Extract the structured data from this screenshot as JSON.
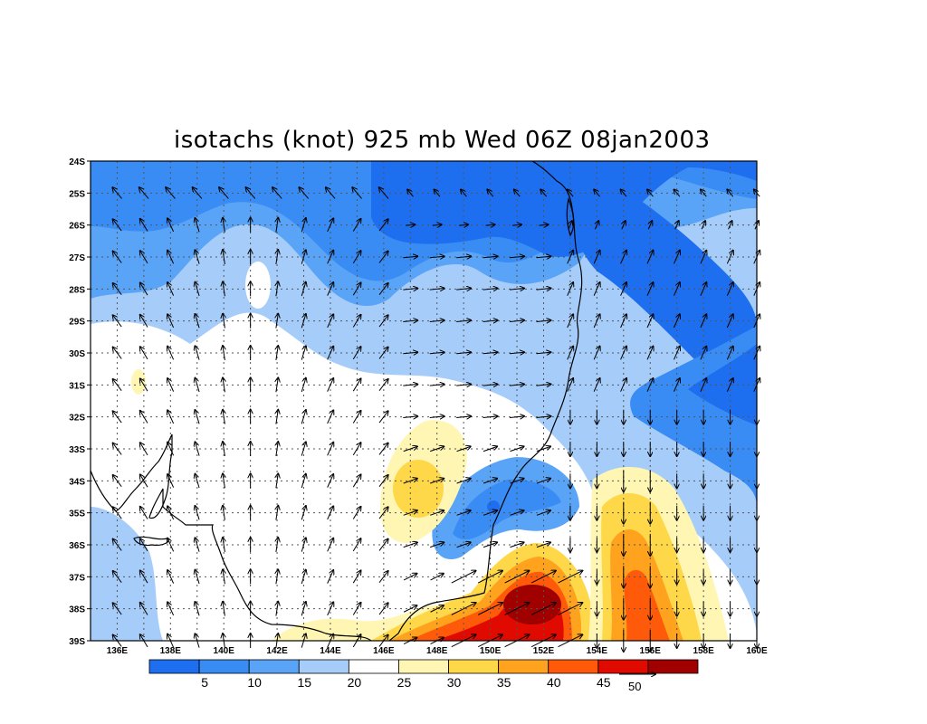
{
  "title": "isotachs (knot) 925 mb Wed 06Z 08jan2003",
  "lat_labels": [
    "24S",
    "25S",
    "26S",
    "27S",
    "28S",
    "29S",
    "30S",
    "31S",
    "32S",
    "33S",
    "34S",
    "35S",
    "36S",
    "37S",
    "38S",
    "39S"
  ],
  "lon_labels": [
    "136E",
    "138E",
    "140E",
    "142E",
    "144E",
    "146E",
    "148E",
    "150E",
    "152E",
    "154E",
    "156E",
    "158E",
    "160E"
  ],
  "colorbar": {
    "ticks": [
      "5",
      "10",
      "15",
      "20",
      "25",
      "30",
      "35",
      "40",
      "45"
    ],
    "colors": [
      "#1e6ef0",
      "#3a8cf5",
      "#5aa4f7",
      "#a6cdfa",
      "#ffffff",
      "#fff6b4",
      "#ffd84a",
      "#ffa21e",
      "#ff5a0a",
      "#e10a00",
      "#a00000"
    ]
  },
  "reference_vector": {
    "label": "50"
  }
}
